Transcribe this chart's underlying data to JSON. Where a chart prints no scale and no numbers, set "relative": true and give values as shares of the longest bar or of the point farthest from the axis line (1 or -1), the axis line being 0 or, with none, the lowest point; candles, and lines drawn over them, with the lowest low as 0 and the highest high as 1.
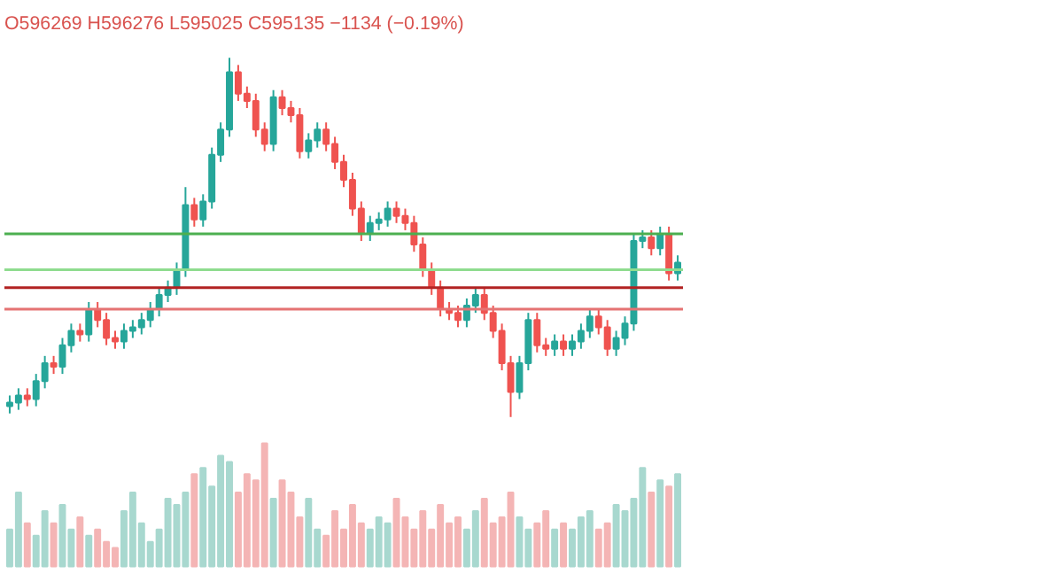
{
  "chart_data": [
    {
      "type": "candlestick",
      "relative": true,
      "tick_labels": false,
      "grid": false,
      "categories": [
        null,
        null,
        null,
        null,
        null,
        null,
        null,
        null,
        null,
        null,
        null,
        null,
        null,
        null,
        null,
        null,
        null,
        null,
        null,
        null,
        null,
        null,
        null,
        null,
        null,
        null,
        null,
        null,
        null,
        null,
        null,
        null,
        null,
        null,
        null,
        null,
        null,
        null,
        null,
        null,
        null,
        null,
        null,
        null,
        null,
        null,
        null,
        null,
        null,
        null,
        null,
        null,
        null,
        null,
        null,
        null,
        null,
        null,
        null,
        null,
        null,
        null,
        null,
        null,
        null,
        null,
        null,
        null,
        null,
        null,
        null,
        null,
        null,
        null,
        null,
        null,
        null
      ],
      "annotations": [
        "O596269 H596276 L595025 C595135 −1134 (−0.19%)"
      ],
      "ohlc": [
        [
          0.03,
          0.06,
          0.01,
          0.04
        ],
        [
          0.04,
          0.08,
          0.02,
          0.06
        ],
        [
          0.06,
          0.08,
          0.03,
          0.05
        ],
        [
          0.05,
          0.12,
          0.03,
          0.1
        ],
        [
          0.1,
          0.17,
          0.08,
          0.15
        ],
        [
          0.15,
          0.17,
          0.12,
          0.14
        ],
        [
          0.14,
          0.22,
          0.12,
          0.2
        ],
        [
          0.2,
          0.26,
          0.18,
          0.24
        ],
        [
          0.24,
          0.26,
          0.21,
          0.23
        ],
        [
          0.23,
          0.32,
          0.21,
          0.3
        ],
        [
          0.3,
          0.32,
          0.25,
          0.27
        ],
        [
          0.27,
          0.29,
          0.2,
          0.22
        ],
        [
          0.22,
          0.24,
          0.19,
          0.21
        ],
        [
          0.21,
          0.26,
          0.19,
          0.24
        ],
        [
          0.24,
          0.27,
          0.22,
          0.25
        ],
        [
          0.25,
          0.29,
          0.23,
          0.27
        ],
        [
          0.27,
          0.32,
          0.25,
          0.3
        ],
        [
          0.3,
          0.36,
          0.28,
          0.34
        ],
        [
          0.34,
          0.38,
          0.32,
          0.36
        ],
        [
          0.36,
          0.43,
          0.34,
          0.41
        ],
        [
          0.41,
          0.64,
          0.39,
          0.59
        ],
        [
          0.59,
          0.61,
          0.53,
          0.55
        ],
        [
          0.55,
          0.62,
          0.53,
          0.6
        ],
        [
          0.6,
          0.75,
          0.58,
          0.73
        ],
        [
          0.73,
          0.82,
          0.71,
          0.8
        ],
        [
          0.8,
          1.0,
          0.78,
          0.96
        ],
        [
          0.96,
          0.98,
          0.88,
          0.9
        ],
        [
          0.9,
          0.92,
          0.86,
          0.88
        ],
        [
          0.88,
          0.9,
          0.78,
          0.8
        ],
        [
          0.8,
          0.82,
          0.74,
          0.76
        ],
        [
          0.76,
          0.91,
          0.74,
          0.89
        ],
        [
          0.89,
          0.91,
          0.84,
          0.86
        ],
        [
          0.86,
          0.88,
          0.82,
          0.84
        ],
        [
          0.84,
          0.86,
          0.72,
          0.74
        ],
        [
          0.74,
          0.79,
          0.72,
          0.77
        ],
        [
          0.77,
          0.82,
          0.75,
          0.8
        ],
        [
          0.8,
          0.82,
          0.74,
          0.76
        ],
        [
          0.76,
          0.78,
          0.69,
          0.71
        ],
        [
          0.71,
          0.73,
          0.64,
          0.66
        ],
        [
          0.66,
          0.68,
          0.56,
          0.58
        ],
        [
          0.58,
          0.6,
          0.49,
          0.51
        ],
        [
          0.51,
          0.56,
          0.49,
          0.54
        ],
        [
          0.54,
          0.57,
          0.52,
          0.55
        ],
        [
          0.55,
          0.6,
          0.53,
          0.58
        ],
        [
          0.58,
          0.6,
          0.54,
          0.56
        ],
        [
          0.56,
          0.58,
          0.52,
          0.54
        ],
        [
          0.54,
          0.56,
          0.46,
          0.48
        ],
        [
          0.48,
          0.5,
          0.39,
          0.41
        ],
        [
          0.41,
          0.43,
          0.34,
          0.36
        ],
        [
          0.36,
          0.38,
          0.28,
          0.3
        ],
        [
          0.3,
          0.32,
          0.27,
          0.29
        ],
        [
          0.29,
          0.31,
          0.25,
          0.27
        ],
        [
          0.27,
          0.33,
          0.25,
          0.31
        ],
        [
          0.31,
          0.36,
          0.29,
          0.34
        ],
        [
          0.34,
          0.36,
          0.27,
          0.29
        ],
        [
          0.29,
          0.31,
          0.22,
          0.24
        ],
        [
          0.24,
          0.26,
          0.13,
          0.15
        ],
        [
          0.15,
          0.17,
          0.0,
          0.07
        ],
        [
          0.07,
          0.17,
          0.05,
          0.15
        ],
        [
          0.15,
          0.29,
          0.13,
          0.27
        ],
        [
          0.27,
          0.29,
          0.18,
          0.2
        ],
        [
          0.2,
          0.22,
          0.17,
          0.19
        ],
        [
          0.19,
          0.23,
          0.17,
          0.21
        ],
        [
          0.21,
          0.23,
          0.17,
          0.19
        ],
        [
          0.19,
          0.23,
          0.17,
          0.21
        ],
        [
          0.21,
          0.26,
          0.19,
          0.24
        ],
        [
          0.24,
          0.3,
          0.22,
          0.28
        ],
        [
          0.28,
          0.3,
          0.23,
          0.25
        ],
        [
          0.25,
          0.27,
          0.17,
          0.19
        ],
        [
          0.19,
          0.24,
          0.17,
          0.22
        ],
        [
          0.22,
          0.28,
          0.2,
          0.26
        ],
        [
          0.26,
          0.51,
          0.24,
          0.49
        ],
        [
          0.49,
          0.52,
          0.47,
          0.5
        ],
        [
          0.5,
          0.52,
          0.45,
          0.47
        ],
        [
          0.47,
          0.53,
          0.45,
          0.51
        ],
        [
          0.51,
          0.53,
          0.38,
          0.4
        ],
        [
          0.4,
          0.45,
          0.38,
          0.43
        ]
      ],
      "ref_lines": [
        {
          "axis": "y",
          "value": 0.51,
          "color": "#4caf50"
        },
        {
          "axis": "y",
          "value": 0.41,
          "color": "#8fdc8f"
        },
        {
          "axis": "y",
          "value": 0.36,
          "color": "#b22222"
        },
        {
          "axis": "y",
          "value": 0.3,
          "color": "#e57373"
        }
      ]
    },
    {
      "type": "bar",
      "relative": true,
      "tick_labels": false,
      "grid": false,
      "categories": [
        null,
        null,
        null,
        null,
        null,
        null,
        null,
        null,
        null,
        null,
        null,
        null,
        null,
        null,
        null,
        null,
        null,
        null,
        null,
        null,
        null,
        null,
        null,
        null,
        null,
        null,
        null,
        null,
        null,
        null,
        null,
        null,
        null,
        null,
        null,
        null,
        null,
        null,
        null,
        null,
        null,
        null,
        null,
        null,
        null,
        null,
        null,
        null,
        null,
        null,
        null,
        null,
        null,
        null,
        null,
        null,
        null,
        null,
        null,
        null,
        null,
        null,
        null,
        null,
        null,
        null,
        null,
        null,
        null,
        null,
        null,
        null,
        null,
        null,
        null,
        null,
        null
      ],
      "values": [
        0.3,
        0.6,
        0.35,
        0.25,
        0.45,
        0.35,
        0.5,
        0.3,
        0.4,
        0.25,
        0.3,
        0.2,
        0.15,
        0.45,
        0.6,
        0.35,
        0.2,
        0.3,
        0.55,
        0.5,
        0.6,
        0.75,
        0.8,
        0.65,
        0.9,
        0.85,
        0.6,
        0.75,
        0.7,
        1.0,
        0.55,
        0.7,
        0.6,
        0.4,
        0.55,
        0.3,
        0.25,
        0.45,
        0.3,
        0.5,
        0.35,
        0.3,
        0.4,
        0.35,
        0.55,
        0.4,
        0.3,
        0.45,
        0.3,
        0.5,
        0.35,
        0.4,
        0.3,
        0.45,
        0.55,
        0.35,
        0.4,
        0.6,
        0.4,
        0.3,
        0.35,
        0.45,
        0.3,
        0.35,
        0.3,
        0.4,
        0.45,
        0.3,
        0.35,
        0.5,
        0.45,
        0.55,
        0.8,
        0.6,
        0.7,
        0.65,
        0.75
      ],
      "colors": [
        "#a8d8cf",
        "#a8d8cf",
        "#f4b5b5",
        "#a8d8cf",
        "#a8d8cf",
        "#f4b5b5",
        "#a8d8cf",
        "#a8d8cf",
        "#f4b5b5",
        "#a8d8cf",
        "#f4b5b5",
        "#f4b5b5",
        "#f4b5b5",
        "#a8d8cf",
        "#a8d8cf",
        "#a8d8cf",
        "#a8d8cf",
        "#a8d8cf",
        "#a8d8cf",
        "#a8d8cf",
        "#a8d8cf",
        "#f4b5b5",
        "#a8d8cf",
        "#a8d8cf",
        "#a8d8cf",
        "#a8d8cf",
        "#f4b5b5",
        "#f4b5b5",
        "#f4b5b5",
        "#f4b5b5",
        "#a8d8cf",
        "#f4b5b5",
        "#f4b5b5",
        "#f4b5b5",
        "#a8d8cf",
        "#a8d8cf",
        "#f4b5b5",
        "#f4b5b5",
        "#f4b5b5",
        "#f4b5b5",
        "#f4b5b5",
        "#a8d8cf",
        "#a8d8cf",
        "#a8d8cf",
        "#f4b5b5",
        "#f4b5b5",
        "#f4b5b5",
        "#f4b5b5",
        "#f4b5b5",
        "#f4b5b5",
        "#f4b5b5",
        "#f4b5b5",
        "#a8d8cf",
        "#a8d8cf",
        "#f4b5b5",
        "#f4b5b5",
        "#f4b5b5",
        "#f4b5b5",
        "#a8d8cf",
        "#a8d8cf",
        "#f4b5b5",
        "#f4b5b5",
        "#a8d8cf",
        "#f4b5b5",
        "#a8d8cf",
        "#a8d8cf",
        "#a8d8cf",
        "#f4b5b5",
        "#f4b5b5",
        "#a8d8cf",
        "#a8d8cf",
        "#a8d8cf",
        "#a8d8cf",
        "#f4b5b5",
        "#a8d8cf",
        "#f4b5b5",
        "#a8d8cf"
      ]
    }
  ]
}
